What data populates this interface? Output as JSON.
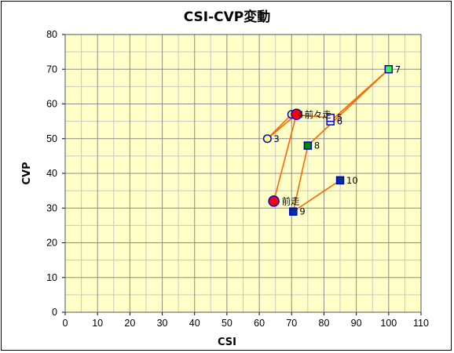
{
  "chart_data": {
    "type": "scatter",
    "title": "CSI-CVP変動",
    "xlabel": "CSI",
    "ylabel": "CVP",
    "xlim": [
      0,
      110
    ],
    "ylim": [
      0,
      80
    ],
    "x_major_step": 10,
    "y_major_step": 10,
    "x_minor_step": 5,
    "y_minor_step": 5,
    "grid": true,
    "plot_background": "#ffffc8",
    "line_color": "#ff6600",
    "points": [
      {
        "label": "前走",
        "x": 64.5,
        "y": 32,
        "marker": "circle",
        "fill": "#ff0000",
        "stroke": "#0000cc",
        "size": "large"
      },
      {
        "label": "前々走",
        "x": 71.5,
        "y": 57,
        "marker": "circle",
        "fill": "#ff0000",
        "stroke": "#0000cc",
        "size": "large"
      },
      {
        "label": "3",
        "x": 62.5,
        "y": 50,
        "marker": "circle",
        "fill": "#ffff66",
        "stroke": "#0000cc",
        "size": "small"
      },
      {
        "label": "4",
        "x": 70,
        "y": 57,
        "marker": "circle",
        "fill": "#ffff66",
        "stroke": "#0000cc",
        "size": "small"
      },
      {
        "label": "5",
        "x": 82,
        "y": 56,
        "marker": "square",
        "fill": "#ffffff",
        "stroke": "#0000cc",
        "size": "small"
      },
      {
        "label": "6",
        "x": 82,
        "y": 55,
        "marker": "square",
        "fill": "#ffffff",
        "stroke": "#0000cc",
        "size": "small"
      },
      {
        "label": "7",
        "x": 100,
        "y": 70,
        "marker": "square",
        "fill": "#33ff33",
        "stroke": "#0000cc",
        "size": "small"
      },
      {
        "label": "8",
        "x": 75,
        "y": 48,
        "marker": "square",
        "fill": "#008800",
        "stroke": "#0000cc",
        "size": "small"
      },
      {
        "label": "9",
        "x": 70.5,
        "y": 29,
        "marker": "square",
        "fill": "#003399",
        "stroke": "#0000cc",
        "size": "small"
      },
      {
        "label": "10",
        "x": 85,
        "y": 38,
        "marker": "square",
        "fill": "#003399",
        "stroke": "#0000cc",
        "size": "small"
      }
    ],
    "path_order": [
      "前走",
      "前々走",
      "3",
      "4",
      "5",
      "6",
      "7",
      "8",
      "9",
      "10"
    ]
  }
}
